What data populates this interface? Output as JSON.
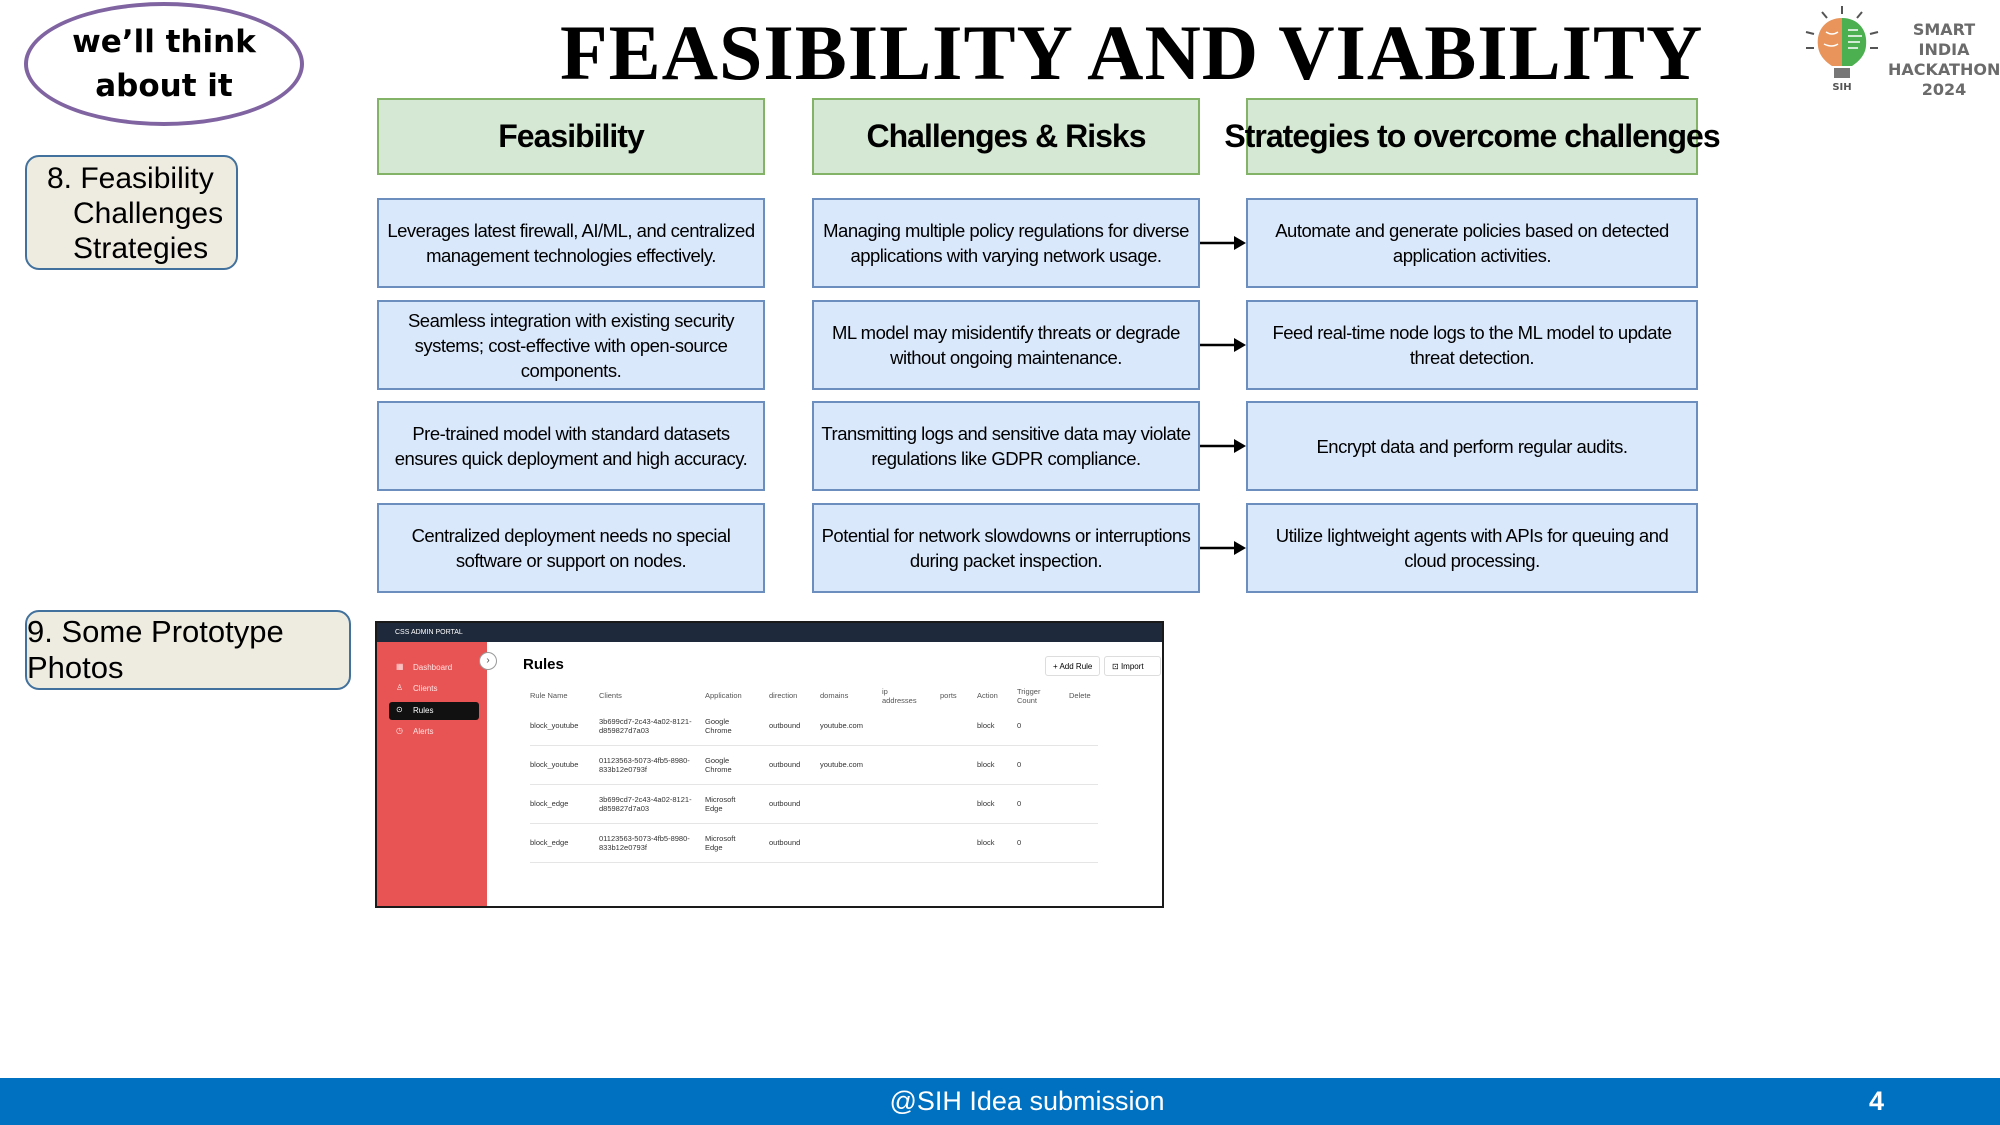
{
  "badge": {
    "line1": "we’ll think",
    "line2": "about it"
  },
  "title": "FEASIBILITY AND VIABILITY",
  "logo": {
    "line1": "SMART INDIA",
    "line2": "HACKATHON",
    "line3": "2024",
    "abbr": "SIH"
  },
  "sections": {
    "s8": {
      "l1": "8. Feasibility",
      "l2": "Challenges",
      "l3": "Strategies"
    },
    "s9": "9. Some Prototype Photos"
  },
  "table": {
    "headers": [
      "Feasibility",
      "Challenges & Risks",
      "Strategies to overcome challenges"
    ],
    "rows": [
      [
        "Leverages latest firewall, AI/ML, and centralized management technologies effectively.",
        "Managing multiple policy regulations for diverse applications with varying network usage.",
        "Automate and generate policies based on detected application activities."
      ],
      [
        "Seamless integration with existing security systems; cost-effective with open-source components.",
        "ML model may misidentify threats or degrade without ongoing maintenance.",
        "Feed real-time node logs to the ML model to update threat detection."
      ],
      [
        "Pre-trained model with standard datasets ensures quick deployment and high accuracy.",
        "Transmitting logs and sensitive data may violate regulations like GDPR compliance.",
        "Encrypt data and perform regular audits."
      ],
      [
        "Centralized deployment needs no special software or support on nodes.",
        "Potential for network slowdowns or interruptions during packet inspection.",
        "Utilize lightweight agents with APIs for queuing and cloud processing."
      ]
    ]
  },
  "prototype": {
    "portal_title": "CSS ADMIN PORTAL",
    "nav": [
      "Dashboard",
      "Clients",
      "Rules",
      "Alerts"
    ],
    "page_title": "Rules",
    "add_rule": "+ Add Rule",
    "import": "Import",
    "columns": [
      "Rule Name",
      "Clients",
      "Application",
      "direction",
      "domains",
      "ip addresses",
      "ports",
      "Action",
      "Trigger Count",
      "Delete"
    ],
    "rows": [
      {
        "name": "block_youtube",
        "client": "3b699cd7-2c43-4a02-8121-d859827d7a03",
        "app": "Google Chrome",
        "direction": "outbound",
        "domain": "youtube.com",
        "action": "block",
        "count": "0"
      },
      {
        "name": "block_youtube",
        "client": "01123563-5073-4fb5-8980-833b12e0793f",
        "app": "Google Chrome",
        "direction": "outbound",
        "domain": "youtube.com",
        "action": "block",
        "count": "0"
      },
      {
        "name": "block_edge",
        "client": "3b699cd7-2c43-4a02-8121-d859827d7a03",
        "app": "Microsoft Edge",
        "direction": "outbound",
        "domain": "",
        "action": "block",
        "count": "0"
      },
      {
        "name": "block_edge",
        "client": "01123563-5073-4fb5-8980-833b12e0793f",
        "app": "Microsoft Edge",
        "direction": "outbound",
        "domain": "",
        "action": "block",
        "count": "0"
      }
    ]
  },
  "footer": {
    "text": "@SIH Idea submission",
    "page": "4"
  },
  "colors": {
    "header_fill": "#d5e8d4",
    "cell_fill": "#dae8fc",
    "footer": "#0070c0",
    "oval_border": "#8064a2",
    "sidebar": "#e85454"
  }
}
